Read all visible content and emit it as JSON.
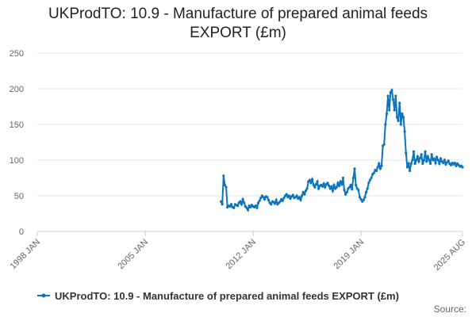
{
  "chart_data": {
    "type": "line",
    "title": "UKProdTO: 10.9 - Manufacture of prepared animal feeds EXPORT (£m)",
    "source": "Source:",
    "xlim": [
      "1998-01",
      "2025-08"
    ],
    "xticks": [
      {
        "value": "1998-01",
        "label": "1998 JAN"
      },
      {
        "value": "2005-01",
        "label": "2005 JAN"
      },
      {
        "value": "2012-01",
        "label": "2012 JAN"
      },
      {
        "value": "2019-01",
        "label": "2019 JAN"
      },
      {
        "value": "2025-08",
        "label": "2025 AUG"
      }
    ],
    "ylim": [
      0,
      250
    ],
    "yticks": [
      0,
      50,
      100,
      150,
      200,
      250
    ],
    "grid": true,
    "start": "2009-12",
    "series": [
      {
        "name": "UKProdTO: 10.9 - Manufacture of prepared animal feeds EXPORT (£m)",
        "color": "#0c74bb",
        "values": [
          42,
          38,
          78,
          65,
          62,
          34,
          36,
          35,
          38,
          34,
          33,
          38,
          37,
          36,
          40,
          42,
          38,
          45,
          40,
          35,
          33,
          30,
          36,
          34,
          37,
          35,
          34,
          36,
          33,
          40,
          43,
          47,
          50,
          48,
          45,
          49,
          48,
          44,
          40,
          38,
          42,
          41,
          39,
          44,
          38,
          40,
          42,
          45,
          43,
          47,
          50,
          52,
          48,
          50,
          46,
          49,
          51,
          47,
          48,
          50,
          46,
          48,
          44,
          50,
          55,
          52,
          57,
          60,
          70,
          72,
          68,
          73,
          65,
          62,
          66,
          70,
          60,
          64,
          65,
          63,
          67,
          62,
          66,
          68,
          64,
          60,
          63,
          57,
          65,
          60,
          62,
          68,
          64,
          70,
          66,
          75,
          58,
          52,
          55,
          60,
          62,
          65,
          59,
          75,
          88,
          65,
          60,
          58,
          48,
          45,
          42,
          44,
          48,
          55,
          60,
          68,
          72,
          75,
          80,
          82,
          86,
          85,
          90,
          95,
          88,
          92,
          120,
          122,
          150,
          165,
          190,
          170,
          195,
          198,
          185,
          170,
          190,
          160,
          155,
          180,
          150,
          165,
          160,
          140,
          110,
          90,
          95,
          85,
          95,
          100,
          112,
          95,
          100,
          105,
          98,
          103,
          108,
          95,
          100,
          112,
          98,
          105,
          100,
          95,
          108,
          100,
          102,
          96,
          104,
          100,
          95,
          102,
          98,
          96,
          100,
          94,
          97,
          99,
          95,
          93,
          96,
          94,
          96,
          92,
          95,
          93,
          91,
          92,
          90
        ]
      }
    ]
  }
}
